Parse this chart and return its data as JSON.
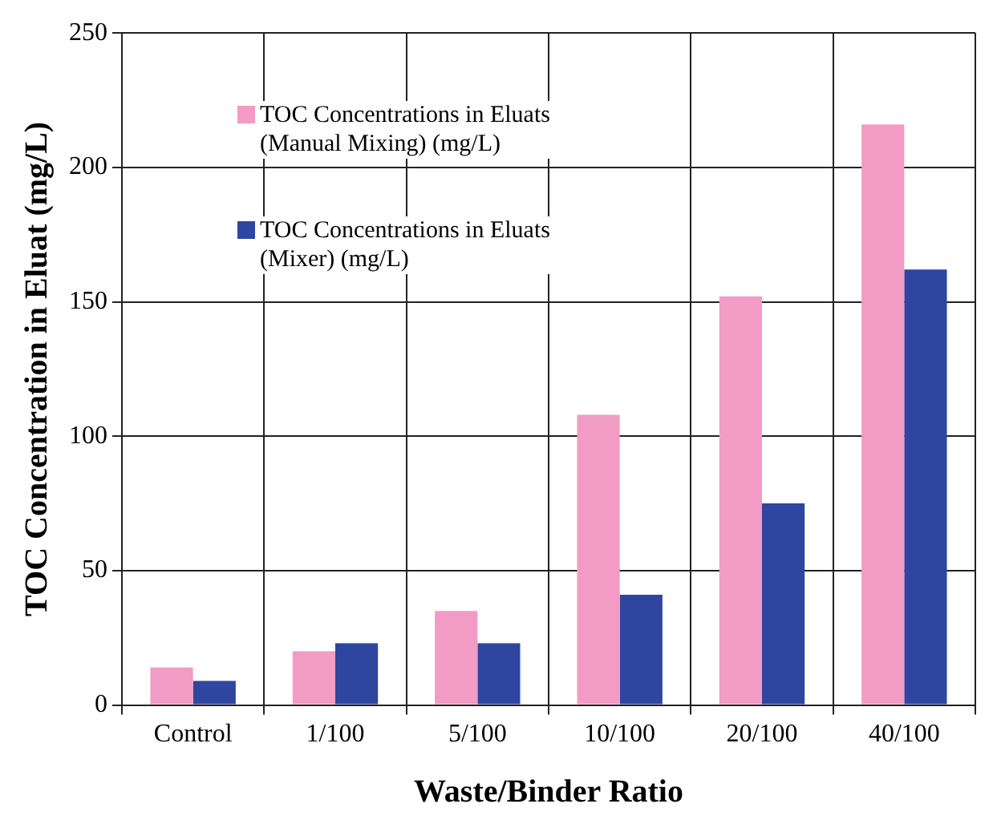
{
  "chart_data": {
    "type": "bar",
    "xlabel": "Waste/Binder Ratio",
    "ylabel": "TOC Concentration in Eluat (mg/L)",
    "categories": [
      "Control",
      "1/100",
      "5/100",
      "10/100",
      "20/100",
      "40/100"
    ],
    "series": [
      {
        "name": "TOC Concentrations in Eluats (Manual Mixing)  (mg/L)",
        "color": "#f29bc4",
        "values": [
          14,
          20,
          35,
          108,
          152,
          216
        ]
      },
      {
        "name": "TOC Concentrations in Eluats (Mixer)  (mg/L)",
        "color": "#2e46a0",
        "values": [
          9,
          23,
          23,
          41,
          75,
          162
        ]
      }
    ],
    "ylim": [
      0,
      250
    ],
    "yticks": [
      0,
      50,
      100,
      150,
      200,
      250
    ],
    "grid": true,
    "legend": "top left"
  }
}
